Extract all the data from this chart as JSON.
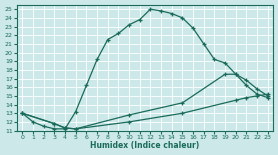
{
  "xlabel": "Humidex (Indice chaleur)",
  "xlim": [
    -0.5,
    23.5
  ],
  "ylim": [
    11,
    25.5
  ],
  "yticks": [
    11,
    12,
    13,
    14,
    15,
    16,
    17,
    18,
    19,
    20,
    21,
    22,
    23,
    24,
    25
  ],
  "xticks": [
    0,
    1,
    2,
    3,
    4,
    5,
    6,
    7,
    8,
    9,
    10,
    11,
    12,
    13,
    14,
    15,
    16,
    17,
    18,
    19,
    20,
    21,
    22,
    23
  ],
  "bg_color": "#cce8e8",
  "grid_color": "#b0d0d0",
  "line_color": "#1a6b5a",
  "line1_x": [
    0,
    1,
    2,
    3,
    4,
    5,
    6,
    7,
    8,
    9,
    10,
    11,
    12,
    13,
    14,
    15,
    16,
    17,
    18,
    19,
    20,
    21,
    22,
    23
  ],
  "line1_y": [
    13,
    12,
    11.5,
    11.2,
    11.2,
    13.2,
    16.2,
    19.2,
    21.5,
    22.2,
    23.2,
    23.8,
    25.0,
    24.8,
    24.5,
    24.0,
    22.8,
    21.0,
    19.2,
    18.8,
    17.5,
    16.8,
    15.8,
    15.0
  ],
  "line2_x": [
    0,
    3,
    4,
    5,
    10,
    15,
    19,
    20,
    21,
    22,
    23
  ],
  "line2_y": [
    13,
    11.8,
    11.3,
    11.2,
    12.8,
    14.2,
    17.5,
    17.5,
    16.2,
    15.2,
    14.8
  ],
  "line3_x": [
    0,
    3,
    4,
    5,
    10,
    15,
    20,
    21,
    22,
    23
  ],
  "line3_y": [
    13,
    11.8,
    11.3,
    11.2,
    12.0,
    13.0,
    14.5,
    14.8,
    15.0,
    15.2
  ]
}
